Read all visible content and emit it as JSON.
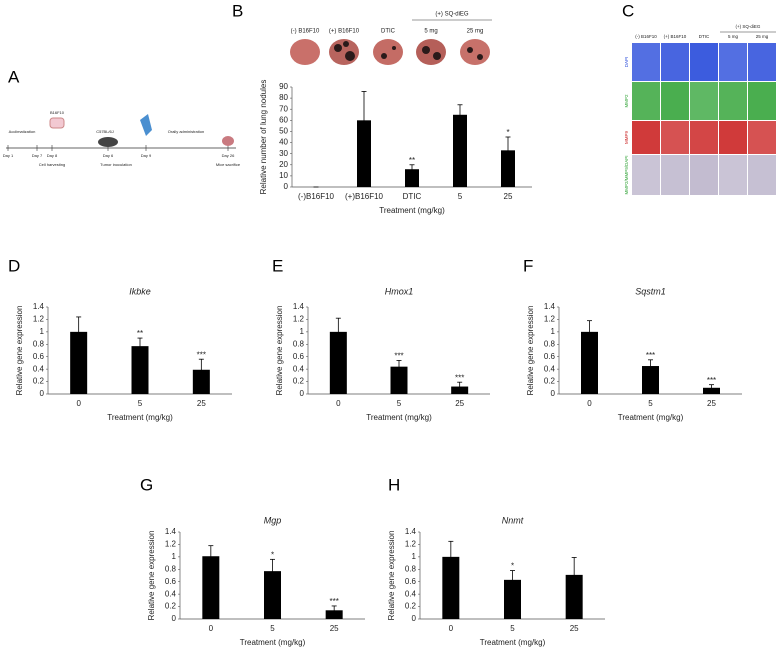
{
  "panels": [
    "A",
    "B",
    "C",
    "D",
    "E",
    "F",
    "G",
    "H"
  ],
  "timeline": {
    "labels": [
      "Acclimatization",
      "Day 1",
      "Day 7",
      "Day 8",
      "B16F10",
      "Cell harvesting",
      "C57BL/6J",
      "Day 6",
      "Tumor inoculation",
      "Day 9",
      "Orally administration",
      "Day 26",
      "Mice sacrifice"
    ]
  },
  "lung_photos": {
    "labels": [
      "(-) B16F10",
      "(+) B16F10",
      "DTIC",
      "(+)  SQ-diEG",
      "5 mg",
      "25 mg"
    ]
  },
  "staining": {
    "columns": [
      "(-) B16F10",
      "(+) B16F10",
      "DTIC",
      "(+)  SQ-diEG",
      "5 mg",
      "25 mg"
    ],
    "rows": [
      "DAPI",
      "MMP2",
      "MMP9",
      "MMP2/MMP9/DAPI"
    ]
  },
  "chart_data": [
    {
      "type": "bar",
      "categories": [
        "(-)B16F10",
        "(+)B16F10",
        "DTIC",
        "5",
        "25"
      ],
      "values": [
        0,
        60,
        16,
        65,
        33
      ],
      "errors": [
        0,
        26,
        4,
        9,
        12
      ],
      "annotations": [
        null,
        null,
        "**",
        null,
        "*"
      ],
      "ylim": [
        0,
        90
      ],
      "yticks": [
        0,
        10,
        20,
        30,
        40,
        50,
        60,
        70,
        80,
        90
      ],
      "xlabel": "Treatment (mg/kg)",
      "ylabel": "Relative number of lung nodules",
      "color": "#000000"
    },
    {
      "type": "bar",
      "title": "Ikbke",
      "categories": [
        "0",
        "5",
        "25"
      ],
      "values": [
        1.0,
        0.77,
        0.39
      ],
      "errors": [
        0.24,
        0.13,
        0.17
      ],
      "annotations": [
        null,
        "**",
        "***"
      ],
      "ylim": [
        0,
        1.4
      ],
      "yticks": [
        0,
        0.2,
        0.4,
        0.6,
        0.8,
        1,
        1.2,
        1.4
      ],
      "xlabel": "Treatment (mg/kg)",
      "ylabel": "Relative gene expression",
      "color": "#000000"
    },
    {
      "type": "bar",
      "title": "Hmox1",
      "categories": [
        "0",
        "5",
        "25"
      ],
      "values": [
        1.0,
        0.44,
        0.12
      ],
      "errors": [
        0.22,
        0.1,
        0.07
      ],
      "annotations": [
        null,
        "***",
        "***"
      ],
      "ylim": [
        0,
        1.4
      ],
      "yticks": [
        0,
        0.2,
        0.4,
        0.6,
        0.8,
        1,
        1.2,
        1.4
      ],
      "xlabel": "Treatment (mg/kg)",
      "ylabel": "Relative gene expression",
      "color": "#000000"
    },
    {
      "type": "bar",
      "title": "Sqstm1",
      "categories": [
        "0",
        "5",
        "25"
      ],
      "values": [
        1.0,
        0.45,
        0.1
      ],
      "errors": [
        0.18,
        0.1,
        0.05
      ],
      "annotations": [
        null,
        "***",
        "***"
      ],
      "ylim": [
        0,
        1.4
      ],
      "yticks": [
        0,
        0.2,
        0.4,
        0.6,
        0.8,
        1,
        1.2,
        1.4
      ],
      "xlabel": "Treatment (mg/kg)",
      "ylabel": "Relative gene expression",
      "color": "#000000"
    },
    {
      "type": "bar",
      "title": "Mgp",
      "categories": [
        "0",
        "5",
        "25"
      ],
      "values": [
        1.01,
        0.77,
        0.14
      ],
      "errors": [
        0.17,
        0.19,
        0.07
      ],
      "annotations": [
        null,
        "*",
        "***"
      ],
      "ylim": [
        0,
        1.4
      ],
      "yticks": [
        0,
        0.2,
        0.4,
        0.6,
        0.8,
        1,
        1.2,
        1.4
      ],
      "xlabel": "Treatment (mg/kg)",
      "ylabel": "Relative gene expression",
      "color": "#000000"
    },
    {
      "type": "bar",
      "title": "Nnmt",
      "categories": [
        "0",
        "5",
        "25"
      ],
      "values": [
        1.0,
        0.63,
        0.71
      ],
      "errors": [
        0.25,
        0.15,
        0.28
      ],
      "annotations": [
        null,
        "*",
        null
      ],
      "ylim": [
        0,
        1.4
      ],
      "yticks": [
        0,
        0.2,
        0.4,
        0.6,
        0.8,
        1,
        1.2,
        1.4
      ],
      "xlabel": "Treatment (mg/kg)",
      "ylabel": "Relative gene expression",
      "color": "#000000"
    }
  ]
}
